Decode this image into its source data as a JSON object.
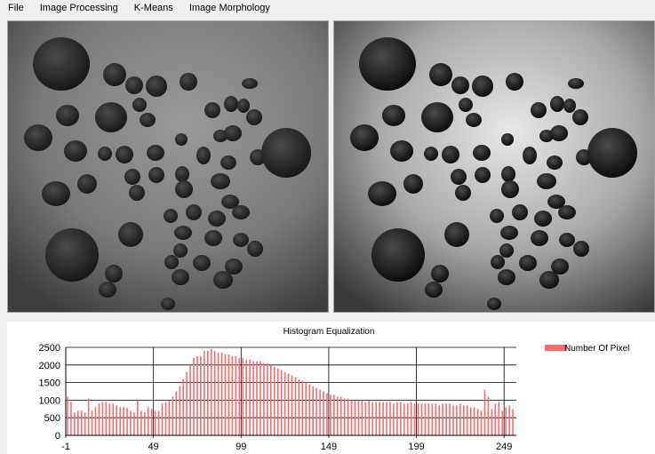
{
  "menu": {
    "items": [
      {
        "label": "File"
      },
      {
        "label": "Image Processing"
      },
      {
        "label": "K-Means"
      },
      {
        "label": "Image Morphology"
      }
    ]
  },
  "images": {
    "left_icon": "original-grayscale-nuts-image",
    "right_icon": "equalized-grayscale-nuts-image"
  },
  "colors": {
    "bar": "#f26d6d",
    "grid": "#000000",
    "panel_bg": "#f0f0f0"
  },
  "chart_data": {
    "type": "bar",
    "title": "Histogram Equalization",
    "legend": [
      "Number Of Pixel"
    ],
    "legend_position": "right",
    "xticks": [
      "-1",
      "49",
      "99",
      "149",
      "199",
      "249"
    ],
    "yticks": [
      "0",
      "500",
      "1000",
      "1500",
      "2000",
      "2500"
    ],
    "xlim": [
      -1,
      256
    ],
    "ylim": [
      0,
      2500
    ],
    "grid": true,
    "series": [
      {
        "name": "Number Of Pixel",
        "x": [
          0,
          2,
          4,
          6,
          8,
          10,
          12,
          14,
          16,
          18,
          20,
          22,
          24,
          26,
          28,
          30,
          32,
          34,
          36,
          38,
          40,
          42,
          44,
          46,
          48,
          50,
          52,
          54,
          56,
          58,
          60,
          62,
          64,
          66,
          68,
          70,
          72,
          74,
          76,
          78,
          80,
          82,
          84,
          86,
          88,
          90,
          92,
          94,
          96,
          98,
          100,
          102,
          104,
          106,
          108,
          110,
          112,
          114,
          116,
          118,
          120,
          122,
          124,
          126,
          128,
          130,
          132,
          134,
          136,
          138,
          140,
          142,
          144,
          146,
          148,
          150,
          152,
          154,
          156,
          158,
          160,
          162,
          164,
          166,
          168,
          170,
          172,
          174,
          176,
          178,
          180,
          182,
          184,
          186,
          188,
          190,
          192,
          194,
          196,
          198,
          200,
          202,
          204,
          206,
          208,
          210,
          212,
          214,
          216,
          218,
          220,
          222,
          224,
          226,
          228,
          230,
          232,
          234,
          236,
          238,
          240,
          242,
          244,
          246,
          248,
          250,
          252,
          254
        ],
        "values": [
          1100,
          950,
          650,
          700,
          700,
          650,
          1050,
          700,
          800,
          900,
          950,
          950,
          900,
          900,
          850,
          800,
          800,
          780,
          700,
          650,
          1000,
          700,
          650,
          800,
          750,
          700,
          700,
          900,
          950,
          1000,
          1100,
          1250,
          1400,
          1600,
          1800,
          2000,
          2200,
          2250,
          2250,
          2400,
          2400,
          2450,
          2400,
          2350,
          2350,
          2300,
          2300,
          2250,
          2250,
          2200,
          2200,
          2150,
          2150,
          2100,
          2100,
          2100,
          2050,
          2050,
          2000,
          1950,
          1900,
          1850,
          1800,
          1750,
          1700,
          1650,
          1600,
          1550,
          1500,
          1450,
          1400,
          1350,
          1300,
          1250,
          1200,
          1150,
          1150,
          1100,
          1100,
          1050,
          1050,
          1000,
          1000,
          1000,
          1000,
          950,
          1000,
          950,
          950,
          950,
          950,
          950,
          950,
          900,
          950,
          950,
          900,
          900,
          950,
          900,
          900,
          900,
          900,
          900,
          900,
          900,
          850,
          900,
          900,
          900,
          850,
          850,
          900,
          850,
          850,
          800,
          800,
          750,
          700,
          1300,
          1100,
          750,
          900,
          950,
          700,
          800,
          850,
          750
        ]
      }
    ]
  }
}
